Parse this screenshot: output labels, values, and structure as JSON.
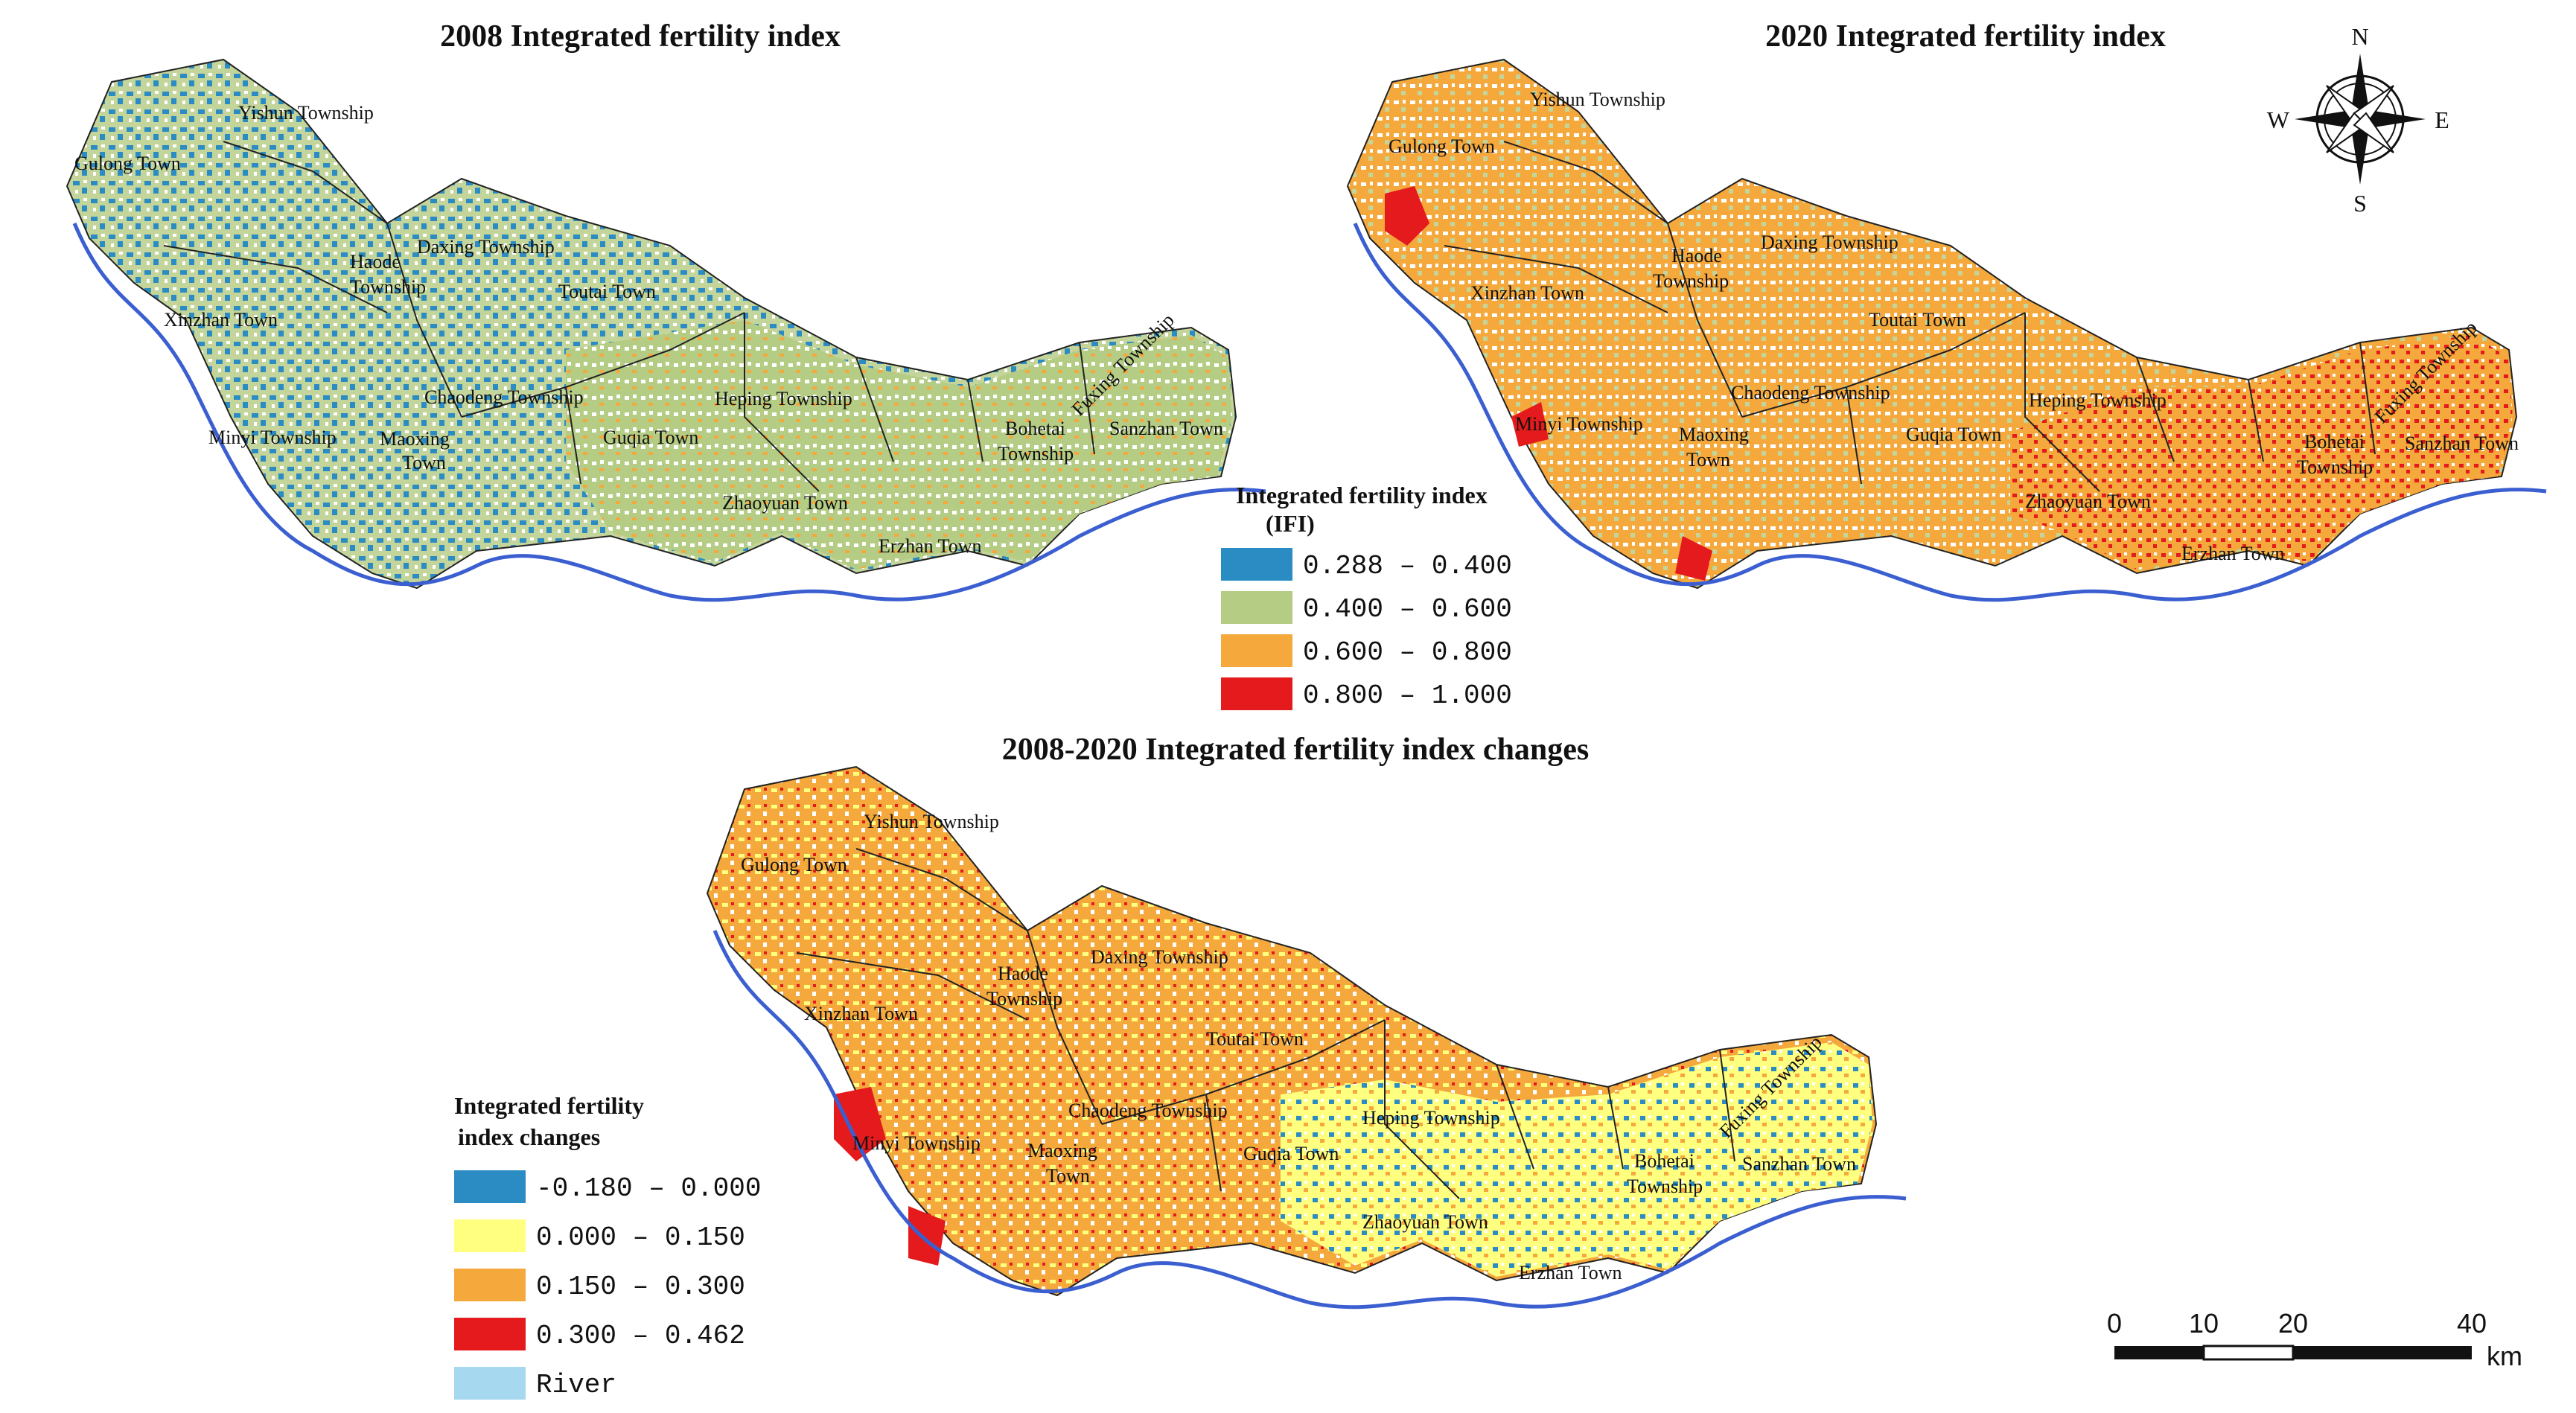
{
  "maps": {
    "m2008": {
      "title": "2008 Integrated fertility index",
      "labels": [
        "Yishun Township",
        "Gulong Town",
        "Haode",
        "Township",
        "Daxing Township",
        "Xinzhan Town",
        "Toutai Town",
        "Chaodeng Township",
        "Heping Township",
        "Minyi Township",
        "Maoxing",
        "Town",
        "Guqia Town",
        "Bohetai",
        "Township",
        "Sanzhan Town",
        "Fuxing Township",
        "Zhaoyuan Town",
        "Erzhan Town"
      ]
    },
    "m2020": {
      "title": "2020 Integrated fertility index",
      "labels": [
        "Yishun Township",
        "Gulong Town",
        "Haode",
        "Township",
        "Daxing Township",
        "Xinzhan Town",
        "Toutai Town",
        "Chaodeng Township",
        "Heping Township",
        "Minyi Township",
        "Maoxing",
        "Town",
        "Guqia Town",
        "Bohetai",
        "Township",
        "Sanzhan Town",
        "Fuxing Township",
        "Zhaoyuan Town",
        "Erzhan Town"
      ]
    },
    "mchange": {
      "title": "2008-2020 Integrated fertility index changes",
      "labels": [
        "Yishun Township",
        "Gulong Town",
        "Haode",
        "Township",
        "Daxing Township",
        "Xinzhan Town",
        "Toutai Town",
        "Chaodeng Township",
        "Heping Township",
        "Minyi Township",
        "Maoxing",
        "Town",
        "Guqia Town",
        "Bohetai",
        "Township",
        "Sanzhan Town",
        "Fuxing Township",
        "Zhaoyuan Town",
        "Erzhan Town"
      ]
    }
  },
  "legend_ifi": {
    "title_line1": "Integrated fertility index",
    "title_line2": "(IFI)",
    "items": [
      {
        "label": "0.288 – 0.400",
        "color": "#2b8cc4"
      },
      {
        "label": "0.400 – 0.600",
        "color": "#b5cc84"
      },
      {
        "label": "0.600 – 0.800",
        "color": "#f5a83c"
      },
      {
        "label": "0.800 – 1.000",
        "color": "#e41a1c"
      }
    ]
  },
  "legend_change": {
    "title_line1": "Integrated fertility",
    "title_line2": "index changes",
    "items": [
      {
        "label": "-0.180 – 0.000",
        "color": "#2b8cc4"
      },
      {
        "label": "0.000 – 0.150",
        "color": "#ffff80"
      },
      {
        "label": "0.150 – 0.300",
        "color": "#f5a83c"
      },
      {
        "label": "0.300 – 0.462",
        "color": "#e41a1c"
      },
      {
        "label": "River",
        "color": "#a6d8f0"
      }
    ]
  },
  "compass": {
    "n": "N",
    "s": "S",
    "e": "E",
    "w": "W"
  },
  "scale_bar": {
    "ticks": [
      "0",
      "10",
      "20",
      "40"
    ],
    "unit": "km"
  },
  "colors": {
    "river": "#3b5fd0",
    "boundary": "#222222",
    "river_fill": "#a6d8f0"
  }
}
